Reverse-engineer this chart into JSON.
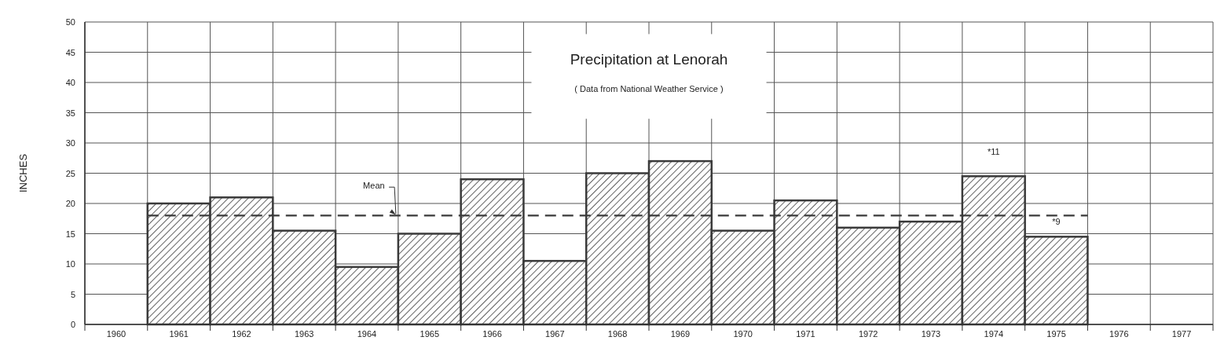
{
  "chart_data": {
    "type": "bar",
    "title": "Precipitation at Lenorah",
    "subtitle": "( Data from National Weather Service )",
    "ylabel": "INCHES",
    "categories": [
      "1960",
      "1961",
      "1962",
      "1963",
      "1964",
      "1965",
      "1966",
      "1967",
      "1968",
      "1969",
      "1970",
      "1971",
      "1972",
      "1973",
      "1974",
      "1975",
      "1976",
      "1977"
    ],
    "values": [
      null,
      20,
      21,
      15.5,
      9.5,
      15,
      24,
      10.5,
      25,
      27,
      15.5,
      20.5,
      16,
      17,
      24.5,
      14.5,
      null,
      null
    ],
    "color": "#3a3a3a",
    "ylim": [
      0,
      50
    ],
    "yticks": [
      0,
      5,
      10,
      15,
      20,
      25,
      30,
      35,
      40,
      45,
      50
    ],
    "grid": true,
    "ref_lines": [
      {
        "axis": "y",
        "value": 18,
        "label": "Mean",
        "line_style": "dashed",
        "color": "#3a3a3a"
      }
    ],
    "annotations": [
      "*11",
      "*9"
    ]
  }
}
